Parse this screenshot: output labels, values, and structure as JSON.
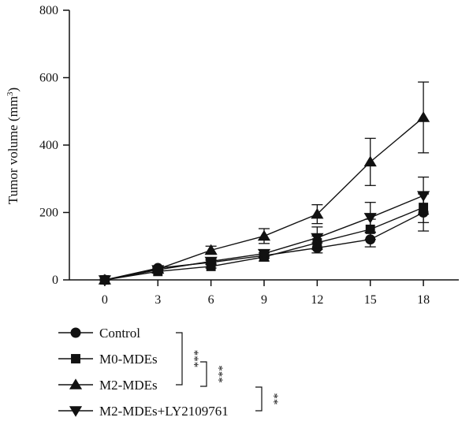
{
  "chart_data": {
    "type": "line",
    "title": "",
    "xlabel": "",
    "ylabel": "Tumor volume (mm",
    "ylabel_sup": "3",
    "ylabel_close": ")",
    "xlim": [
      -2,
      20
    ],
    "ylim": [
      0,
      800
    ],
    "x_ticks": [
      0,
      3,
      6,
      9,
      12,
      15,
      18
    ],
    "y_ticks": [
      0,
      200,
      400,
      600,
      800
    ],
    "x": [
      0,
      3,
      6,
      9,
      12,
      15,
      18
    ],
    "grid": false,
    "legend_position": "bottom-left",
    "series": [
      {
        "name": "Control",
        "marker": "circle",
        "values": [
          0,
          35,
          52,
          72,
          95,
          120,
          200
        ],
        "errors": [
          0,
          4,
          6,
          8,
          15,
          22,
          55
        ]
      },
      {
        "name": "M0-MDEs",
        "marker": "square",
        "values": [
          0,
          25,
          40,
          68,
          110,
          150,
          215
        ],
        "errors": [
          0,
          4,
          5,
          12,
          20,
          30,
          45
        ]
      },
      {
        "name": "M2-MDEs",
        "marker": "triangle-up",
        "values": [
          0,
          32,
          88,
          130,
          195,
          350,
          482
        ],
        "errors": [
          0,
          5,
          12,
          22,
          28,
          70,
          105
        ]
      },
      {
        "name": "M2-MDEs+LY2109761",
        "marker": "triangle-down",
        "values": [
          0,
          30,
          55,
          78,
          125,
          185,
          250
        ],
        "errors": [
          0,
          4,
          6,
          10,
          32,
          45,
          55
        ]
      }
    ],
    "significance": [
      {
        "label": "***",
        "between": [
          "Control",
          "M2-MDEs"
        ]
      },
      {
        "label": "***",
        "between": [
          "M0-MDEs",
          "M2-MDEs"
        ]
      },
      {
        "label": "**",
        "between": [
          "M2-MDEs",
          "M2-MDEs+LY2109761"
        ]
      }
    ]
  }
}
